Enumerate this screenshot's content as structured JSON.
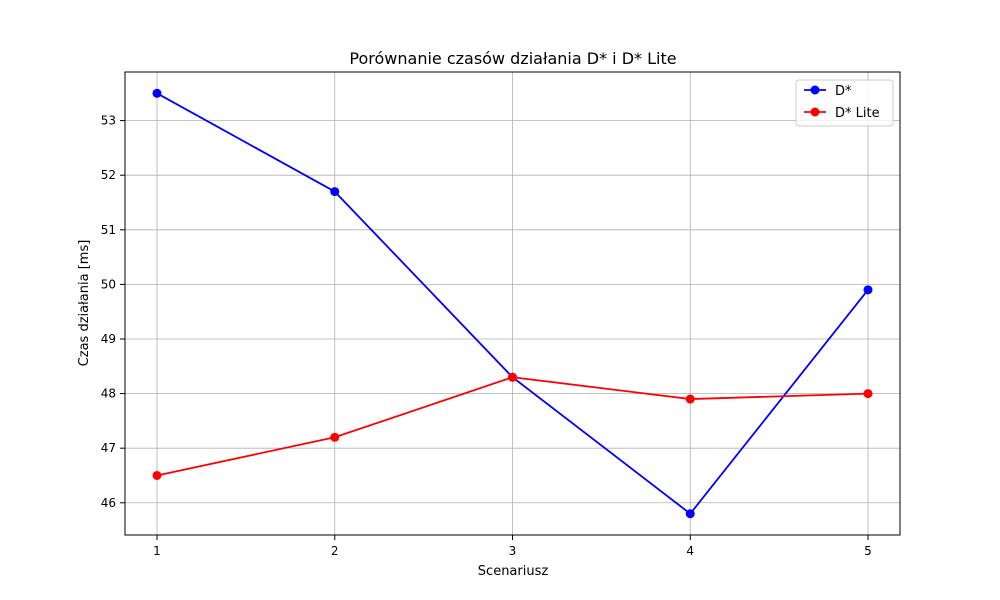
{
  "chart_data": {
    "type": "line",
    "title": "Porównanie czasów działania D* i D* Lite",
    "xlabel": "Scenariusz",
    "ylabel": "Czas działania [ms]",
    "x": [
      1,
      2,
      3,
      4,
      5
    ],
    "xticks": [
      1,
      2,
      3,
      4,
      5
    ],
    "yticks": [
      46,
      47,
      48,
      49,
      50,
      51,
      52,
      53
    ],
    "xlim": [
      0.82,
      5.18
    ],
    "ylim": [
      45.41,
      53.89
    ],
    "grid": true,
    "legend": "top-right",
    "series": [
      {
        "name": "D*",
        "values": [
          53.5,
          51.7,
          48.3,
          45.8,
          49.9
        ],
        "color": "#0000ff"
      },
      {
        "name": "D* Lite",
        "values": [
          46.5,
          47.2,
          48.3,
          47.9,
          48.0
        ],
        "color": "#ff0000"
      }
    ]
  }
}
